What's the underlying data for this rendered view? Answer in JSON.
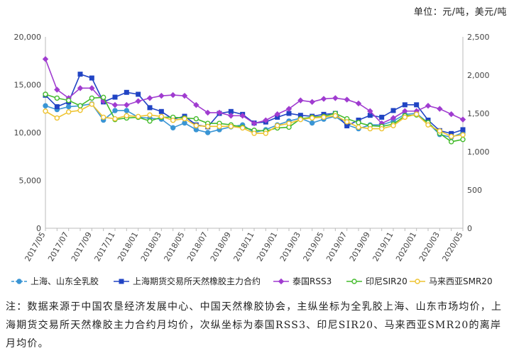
{
  "header": {
    "unit_note": "单位：元/吨，美元/吨"
  },
  "footnote": "注：数据来源于中国农垦经济发展中心、中国天然橡胶协会，主纵坐标为全乳胶上海、山东市场均价，上海期货交易所天然橡胶主力合约月均价，次纵坐标为泰国RSS3、印尼SIR20、马来西亚SMR20的离岸月均价。",
  "chart_data": {
    "type": "line",
    "x": [
      "2017/05",
      "2017/06",
      "2017/07",
      "2017/08",
      "2017/09",
      "2017/10",
      "2017/11",
      "2017/12",
      "2018/01",
      "2018/02",
      "2018/03",
      "2018/04",
      "2018/05",
      "2018/06",
      "2018/07",
      "2018/08",
      "2018/09",
      "2018/10",
      "2018/11",
      "2018/12",
      "2019/01",
      "2019/02",
      "2019/03",
      "2019/04",
      "2019/05",
      "2019/06",
      "2019/07",
      "2019/08",
      "2019/09",
      "2019/10",
      "2019/11",
      "2019/12",
      "2020/01",
      "2020/02",
      "2020/03",
      "2020/04",
      "2020/05"
    ],
    "x_tick_labels": [
      "2017/05",
      "2017/07",
      "2017/09",
      "2017/11",
      "2018/01",
      "2018/03",
      "2018/05",
      "2018/07",
      "2018/09",
      "2018/11",
      "2019/01",
      "2019/03",
      "2019/05",
      "2019/07",
      "2019/09",
      "2019/11",
      "2020/01",
      "2020/03",
      "2020/05"
    ],
    "y_left": {
      "lim": [
        0,
        20000
      ],
      "ticks": [
        "0",
        "5,000",
        "10,000",
        "15,000",
        "20,000"
      ]
    },
    "y_right": {
      "lim": [
        0,
        2500
      ],
      "ticks": [
        "0",
        "500",
        "1,000",
        "1,500",
        "2,000",
        "2,500"
      ]
    },
    "grid": false,
    "legend_position": "bottom",
    "series": [
      {
        "name": "上海、山东全乳胶",
        "axis": "left",
        "color": "#3a95d4",
        "marker": "circle",
        "values": [
          12800,
          12400,
          12700,
          12800,
          13000,
          11300,
          12300,
          12300,
          11600,
          11500,
          11400,
          10500,
          11000,
          10300,
          10000,
          10300,
          10600,
          10800,
          10000,
          10300,
          10800,
          11200,
          11500,
          11000,
          11400,
          11700,
          10800,
          10400,
          10800,
          10800,
          11200,
          11900,
          12000,
          11000,
          9800,
          9500,
          10000
        ]
      },
      {
        "name": "上海期货交易所天然橡胶主力合约",
        "axis": "left",
        "color": "#2144c4",
        "marker": "square",
        "values": [
          13900,
          12700,
          13200,
          16100,
          15700,
          13200,
          13700,
          14200,
          14000,
          12600,
          12200,
          11400,
          11700,
          10800,
          10600,
          12000,
          12200,
          11900,
          11000,
          11100,
          11600,
          12000,
          11800,
          11700,
          11900,
          12000,
          10700,
          11300,
          11800,
          11600,
          12300,
          12900,
          12900,
          11300,
          10200,
          9900,
          10300
        ]
      },
      {
        "name": "泰国RSS3",
        "axis": "right",
        "color": "#a03cd0",
        "marker": "diamond",
        "values": [
          2210,
          1810,
          1700,
          1830,
          1830,
          1660,
          1610,
          1610,
          1660,
          1700,
          1730,
          1740,
          1730,
          1610,
          1510,
          1510,
          1470,
          1470,
          1370,
          1410,
          1490,
          1560,
          1670,
          1650,
          1690,
          1700,
          1680,
          1630,
          1530,
          1370,
          1440,
          1530,
          1530,
          1600,
          1560,
          1490,
          1420
        ]
      },
      {
        "name": "印尼SIR20",
        "axis": "right",
        "color": "#44bb2c",
        "marker": "circle",
        "values": [
          1750,
          1700,
          1670,
          1600,
          1700,
          1710,
          1420,
          1440,
          1450,
          1400,
          1450,
          1450,
          1440,
          1430,
          1370,
          1370,
          1350,
          1320,
          1280,
          1270,
          1310,
          1320,
          1430,
          1450,
          1460,
          1500,
          1430,
          1380,
          1340,
          1330,
          1360,
          1470,
          1480,
          1380,
          1240,
          1130,
          1160
        ]
      },
      {
        "name": "马来西亚SMR20",
        "axis": "right",
        "color": "#eec330",
        "marker": "circle",
        "values": [
          1530,
          1440,
          1520,
          1540,
          1620,
          1450,
          1430,
          1470,
          1460,
          1480,
          1460,
          1410,
          1430,
          1340,
          1330,
          1330,
          1330,
          1310,
          1240,
          1240,
          1340,
          1370,
          1420,
          1440,
          1450,
          1470,
          1390,
          1320,
          1300,
          1300,
          1340,
          1450,
          1490,
          1350,
          1270,
          1200,
          1220
        ]
      }
    ]
  }
}
